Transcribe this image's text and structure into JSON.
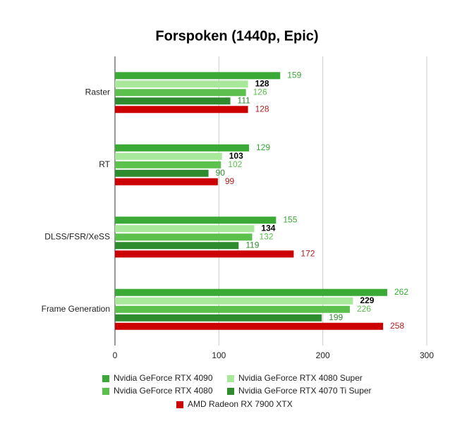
{
  "chart_data": {
    "type": "hbar",
    "title": "Forspoken (1440p, Epic)",
    "categories": [
      "Raster",
      "RT",
      "DLSS/FSR/XeSS",
      "Frame Generation"
    ],
    "series": [
      {
        "name": "Nvidia GeForce RTX 4090",
        "color": "#3aa935",
        "label_color": "#3aa935",
        "values": [
          159,
          129,
          155,
          262
        ]
      },
      {
        "name": "Nvidia GeForce RTX 4080 Super",
        "color": "#a8e89a",
        "label_color": "#000000",
        "label_bold": true,
        "values": [
          128,
          103,
          134,
          229
        ]
      },
      {
        "name": "Nvidia GeForce RTX 4080",
        "color": "#5cc04d",
        "label_color": "#5cc04d",
        "values": [
          126,
          102,
          132,
          226
        ]
      },
      {
        "name": "Nvidia GeForce RTX 4070 Ti Super",
        "color": "#2e8b2e",
        "label_color": "#2e8b2e",
        "values": [
          111,
          90,
          119,
          199
        ]
      },
      {
        "name": "AMD Radeon RX 7900 XTX",
        "color": "#cc0000",
        "label_color": "#b71c1c",
        "values": [
          128,
          99,
          172,
          258
        ]
      }
    ],
    "xlim": [
      0,
      300
    ],
    "xticks": [
      0,
      100,
      200,
      300
    ],
    "grid": true
  }
}
